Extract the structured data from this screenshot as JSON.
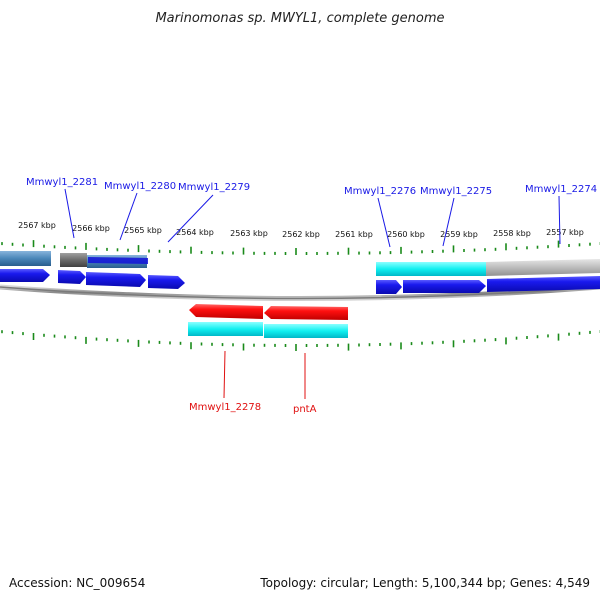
{
  "title": "Marinomonas sp. MWYL1, complete genome",
  "footer": {
    "accession": "Accession: NC_009654",
    "topology": "Topology: circular; Length: 5,100,344 bp; Genes: 4,549"
  },
  "ticks": [
    "2567 kbp",
    "2566 kbp",
    "2565 kbp",
    "2564 kbp",
    "2563 kbp",
    "2562 kbp",
    "2561 kbp",
    "2560 kbp",
    "2559 kbp",
    "2558 kbp",
    "2557 kbp"
  ],
  "gene_labels_top": [
    "Mmwyl1_2281",
    "Mmwyl1_2280",
    "Mmwyl1_2279",
    "Mmwyl1_2276",
    "Mmwyl1_2275",
    "Mmwyl1_2274"
  ],
  "gene_labels_bottom": [
    "Mmwyl1_2278",
    "pntA"
  ],
  "colors": {
    "cds": "#1010e8",
    "cds_rev": "#ff1010",
    "cog_cyan": "#10f0f0",
    "cog_gray": "#b8b8b8",
    "cog_dark": "#707070",
    "cog_steel": "#4a86b8",
    "tick": "#1a8a1a",
    "backbone": "#888888",
    "label_blue": "#1a1ae6",
    "label_red": "#e01010"
  }
}
